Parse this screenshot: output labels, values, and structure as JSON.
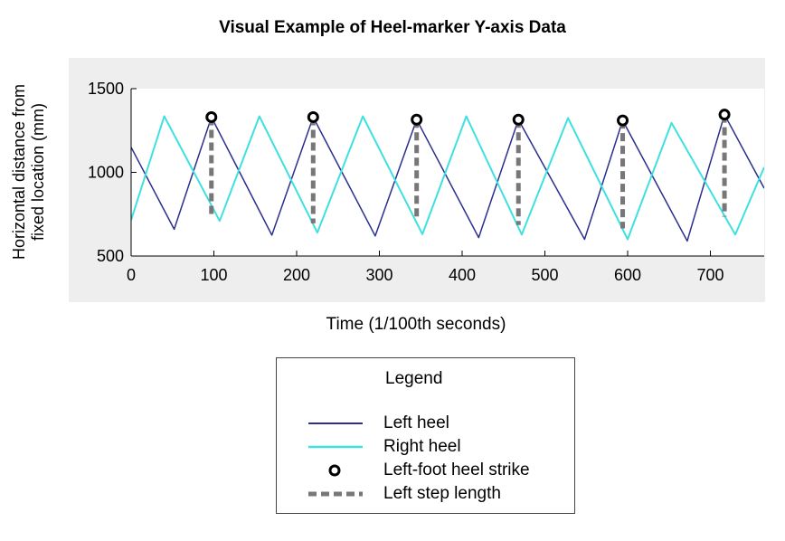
{
  "chart_data": {
    "type": "line",
    "title": "Visual Example of Heel-marker Y-axis Data",
    "xlabel": "Time (1/100th seconds)",
    "ylabel": [
      "Horizontal distance from",
      "fixed location (mm)"
    ],
    "xlim": [
      0,
      765
    ],
    "ylim": [
      500,
      1500
    ],
    "xticks": [
      0,
      100,
      200,
      300,
      400,
      500,
      600,
      700
    ],
    "yticks": [
      500,
      1000,
      1500
    ],
    "grid": false,
    "legend_position": "below",
    "series": [
      {
        "name": "Left heel",
        "color": "#2b2f8f",
        "points": [
          [
            0,
            1150
          ],
          [
            52,
            660
          ],
          [
            97,
            1330
          ],
          [
            170,
            625
          ],
          [
            220,
            1330
          ],
          [
            295,
            620
          ],
          [
            345,
            1315
          ],
          [
            420,
            610
          ],
          [
            468,
            1315
          ],
          [
            548,
            600
          ],
          [
            594,
            1310
          ],
          [
            672,
            590
          ],
          [
            717,
            1345
          ],
          [
            765,
            905
          ]
        ]
      },
      {
        "name": "Right heel",
        "color": "#3fe0e0",
        "points": [
          [
            0,
            715
          ],
          [
            40,
            1335
          ],
          [
            107,
            710
          ],
          [
            155,
            1335
          ],
          [
            225,
            640
          ],
          [
            280,
            1335
          ],
          [
            352,
            630
          ],
          [
            405,
            1335
          ],
          [
            472,
            628
          ],
          [
            528,
            1325
          ],
          [
            600,
            600
          ],
          [
            653,
            1295
          ],
          [
            730,
            628
          ],
          [
            765,
            1030
          ]
        ]
      }
    ],
    "heel_strikes": [
      {
        "x": 97,
        "y": 1330
      },
      {
        "x": 220,
        "y": 1330
      },
      {
        "x": 345,
        "y": 1315
      },
      {
        "x": 468,
        "y": 1315
      },
      {
        "x": 594,
        "y": 1310
      },
      {
        "x": 717,
        "y": 1345
      }
    ],
    "step_lengths": [
      {
        "x": 97,
        "y_top": 1330,
        "y_bottom": 750
      },
      {
        "x": 220,
        "y_top": 1330,
        "y_bottom": 695
      },
      {
        "x": 345,
        "y_top": 1315,
        "y_bottom": 710
      },
      {
        "x": 468,
        "y_top": 1315,
        "y_bottom": 685
      },
      {
        "x": 594,
        "y_top": 1310,
        "y_bottom": 665
      },
      {
        "x": 717,
        "y_top": 1345,
        "y_bottom": 735
      }
    ],
    "legend": {
      "title": "Legend",
      "entries": [
        {
          "label": "Left heel",
          "symbol": "line",
          "color": "#2b2f8f"
        },
        {
          "label": "Right heel",
          "symbol": "line",
          "color": "#3fe0e0"
        },
        {
          "label": "Left-foot heel strike",
          "symbol": "circle",
          "color": "#000000"
        },
        {
          "label": "Left step length",
          "symbol": "dashed-line",
          "color": "#777777"
        }
      ]
    }
  }
}
